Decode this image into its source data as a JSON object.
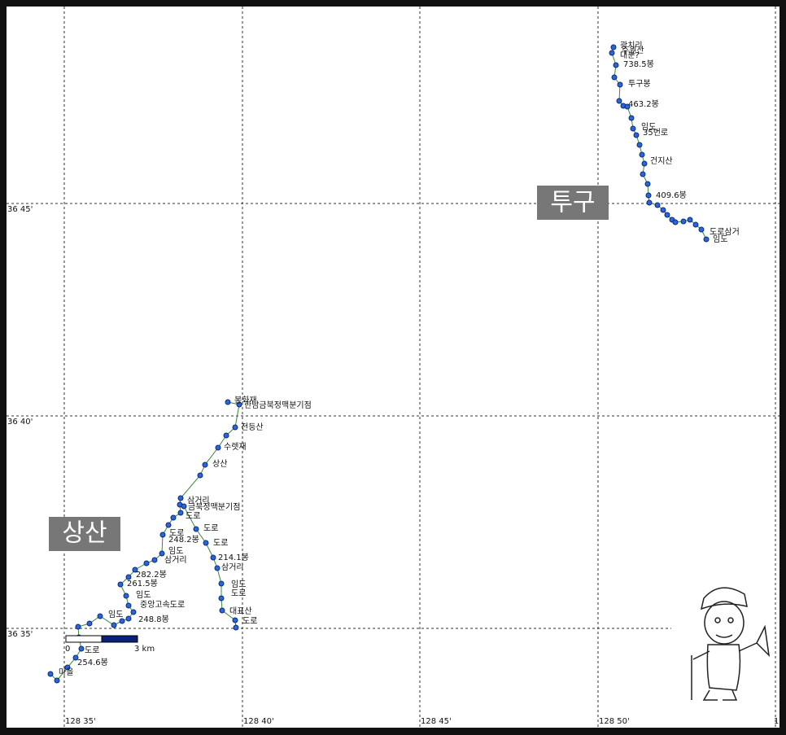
{
  "grid": {
    "lat_labels": [
      "36 45'",
      "36 40'",
      "36 35'"
    ],
    "lon_labels": [
      "128 35'",
      "128 40'",
      "128 45'",
      "128 50'",
      "1"
    ]
  },
  "areas": [
    "투구",
    "상산"
  ],
  "places": [
    "광치리",
    "주원산",
    "대분?",
    "738.5봉",
    "투구봉",
    "463.2봉",
    "임도",
    "35번로",
    "건지산",
    "409.6봉",
    "도로삼거",
    "임도",
    "봉화재",
    "한남금북정맥분기점",
    "전등산",
    "수렛재",
    "상산",
    "삼거리",
    "금북정맥분기점",
    "도로",
    "도로",
    "도로",
    "248.2봉",
    "도로",
    "임도",
    "삼거리",
    "214.1봉",
    "삼거리",
    "282.2봉",
    "261.5봉",
    "임도",
    "도로",
    "임도",
    "중앙고속도로",
    "대표산",
    "도로",
    "248.8봉",
    "임도",
    "도로",
    "254.6봉",
    "마을"
  ],
  "scale": {
    "start": "0",
    "end": "3 km"
  }
}
